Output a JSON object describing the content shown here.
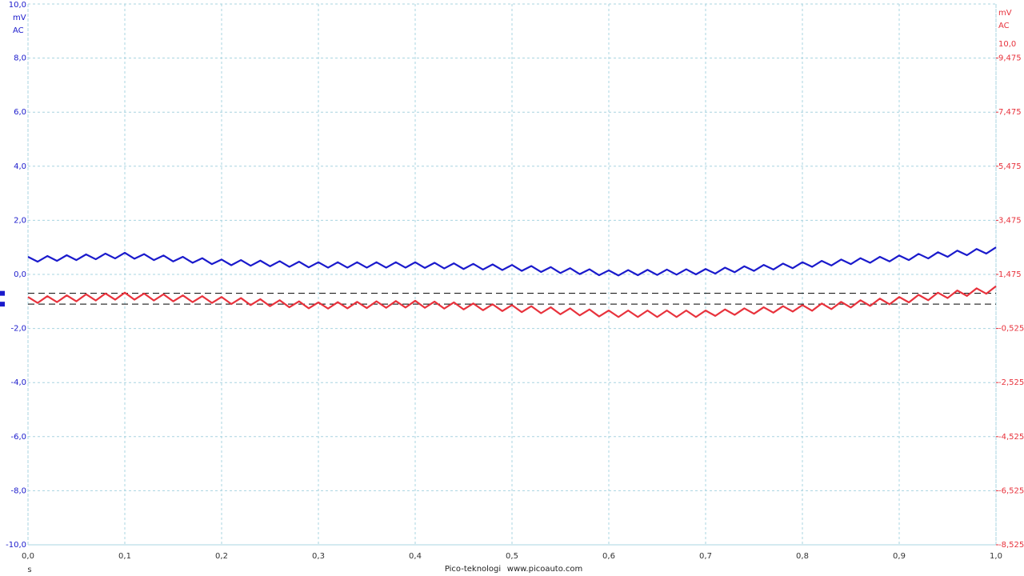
{
  "chart_data": {
    "type": "line",
    "left_header": {
      "top": "10,0",
      "unit": "mV",
      "coupling": "AC"
    },
    "right_header": {
      "unit": "mV",
      "coupling": "AC",
      "range": "10,0"
    },
    "x_unit": "s",
    "footer": [
      "Pico-teknologi",
      "www.picoauto.com"
    ],
    "xlim": [
      0,
      1
    ],
    "xticks": [
      {
        "value": 0,
        "label": "0,0"
      },
      {
        "value": 0.1,
        "label": "0,1"
      },
      {
        "value": 0.2,
        "label": "0,2"
      },
      {
        "value": 0.3,
        "label": "0,3"
      },
      {
        "value": 0.4,
        "label": "0,4"
      },
      {
        "value": 0.5,
        "label": "0,5"
      },
      {
        "value": 0.6,
        "label": "0,6"
      },
      {
        "value": 0.7,
        "label": "0,7"
      },
      {
        "value": 0.8,
        "label": "0,8"
      },
      {
        "value": 0.9,
        "label": "0,9"
      },
      {
        "value": 1,
        "label": "1,0"
      }
    ],
    "ylim": [
      -10,
      10
    ],
    "yticks": [
      {
        "value": 8,
        "label": "8,0"
      },
      {
        "value": 6,
        "label": "6,0"
      },
      {
        "value": 4,
        "label": "4,0"
      },
      {
        "value": 2,
        "label": "2,0"
      },
      {
        "value": 0,
        "label": "0,0"
      },
      {
        "value": -2,
        "label": "-2,0"
      },
      {
        "value": -4,
        "label": "-4,0"
      },
      {
        "value": -6,
        "label": "-6,0"
      },
      {
        "value": -8,
        "label": "-8,0"
      },
      {
        "value": -10,
        "label": "-10,0"
      }
    ],
    "y2lim": [
      -8.525,
      11.475
    ],
    "y2ticks": [
      {
        "value": 9.475,
        "label": "9,475"
      },
      {
        "value": 7.475,
        "label": "7,475"
      },
      {
        "value": 5.475,
        "label": "5,475"
      },
      {
        "value": 3.475,
        "label": "3,475"
      },
      {
        "value": 1.475,
        "label": "1,475"
      },
      {
        "value": -0.525,
        "label": "-0,525"
      },
      {
        "value": -2.525,
        "label": "-2,525"
      },
      {
        "value": -4.525,
        "label": "-4,525"
      },
      {
        "value": -6.525,
        "label": "-6,525"
      },
      {
        "value": -8.525,
        "label": "-8,525"
      }
    ],
    "grid": true,
    "rulers": [
      -0.7,
      -1.1
    ],
    "left_color": "#1a1acc",
    "right_color": "#e8323c",
    "grid_color": "#a8d4e0",
    "x": [
      0,
      0.01,
      0.02,
      0.03,
      0.04,
      0.05,
      0.06,
      0.07,
      0.08,
      0.09,
      0.1,
      0.11,
      0.12,
      0.13,
      0.14,
      0.15,
      0.16,
      0.17,
      0.18,
      0.19,
      0.2,
      0.21,
      0.22,
      0.23,
      0.24,
      0.25,
      0.26,
      0.27,
      0.28,
      0.29,
      0.3,
      0.31,
      0.32,
      0.33,
      0.34,
      0.35,
      0.36,
      0.37,
      0.38,
      0.39,
      0.4,
      0.41,
      0.42,
      0.43,
      0.44,
      0.45,
      0.46,
      0.47,
      0.48,
      0.49,
      0.5,
      0.51,
      0.52,
      0.53,
      0.54,
      0.55,
      0.56,
      0.57,
      0.58,
      0.59,
      0.6,
      0.61,
      0.62,
      0.63,
      0.64,
      0.65,
      0.66,
      0.67,
      0.68,
      0.69,
      0.7,
      0.71,
      0.72,
      0.73,
      0.74,
      0.75,
      0.76,
      0.77,
      0.78,
      0.79,
      0.8,
      0.81,
      0.82,
      0.83,
      0.84,
      0.85,
      0.86,
      0.87,
      0.88,
      0.89,
      0.9,
      0.91,
      0.92,
      0.93,
      0.94,
      0.95,
      0.96,
      0.97,
      0.98,
      0.99,
      1
    ],
    "series": [
      {
        "color": "#1a1acc",
        "axis": "y",
        "values": [
          0.65,
          0.47,
          0.68,
          0.5,
          0.71,
          0.53,
          0.74,
          0.56,
          0.77,
          0.59,
          0.8,
          0.58,
          0.75,
          0.53,
          0.7,
          0.48,
          0.65,
          0.43,
          0.6,
          0.38,
          0.55,
          0.34,
          0.53,
          0.32,
          0.51,
          0.3,
          0.49,
          0.28,
          0.47,
          0.26,
          0.45,
          0.25,
          0.45,
          0.25,
          0.45,
          0.25,
          0.45,
          0.25,
          0.45,
          0.25,
          0.45,
          0.24,
          0.43,
          0.22,
          0.41,
          0.2,
          0.39,
          0.18,
          0.37,
          0.16,
          0.35,
          0.13,
          0.31,
          0.09,
          0.27,
          0.05,
          0.23,
          0.01,
          0.19,
          -0.03,
          0.15,
          -0.04,
          0.16,
          -0.03,
          0.17,
          -0.02,
          0.18,
          -0.01,
          0.19,
          0,
          0.2,
          0.03,
          0.25,
          0.08,
          0.3,
          0.13,
          0.35,
          0.18,
          0.4,
          0.23,
          0.45,
          0.28,
          0.5,
          0.33,
          0.55,
          0.38,
          0.6,
          0.43,
          0.65,
          0.48,
          0.7,
          0.53,
          0.76,
          0.59,
          0.82,
          0.65,
          0.88,
          0.71,
          0.94,
          0.77,
          1.0
        ]
      },
      {
        "color": "#e8323c",
        "axis": "y2",
        "values": [
          0.64,
          0.42,
          0.67,
          0.45,
          0.7,
          0.48,
          0.74,
          0.51,
          0.77,
          0.54,
          0.8,
          0.54,
          0.77,
          0.51,
          0.74,
          0.48,
          0.7,
          0.45,
          0.67,
          0.42,
          0.64,
          0.38,
          0.6,
          0.34,
          0.56,
          0.3,
          0.52,
          0.26,
          0.48,
          0.22,
          0.44,
          0.21,
          0.45,
          0.22,
          0.46,
          0.23,
          0.48,
          0.24,
          0.49,
          0.25,
          0.5,
          0.24,
          0.47,
          0.21,
          0.44,
          0.18,
          0.4,
          0.15,
          0.37,
          0.12,
          0.34,
          0.08,
          0.3,
          0.04,
          0.26,
          0,
          0.22,
          -0.04,
          0.18,
          -0.08,
          0.14,
          -0.1,
          0.14,
          -0.1,
          0.14,
          -0.1,
          0.14,
          -0.1,
          0.14,
          -0.1,
          0.14,
          -0.06,
          0.18,
          -0.02,
          0.22,
          0.02,
          0.26,
          0.06,
          0.3,
          0.1,
          0.34,
          0.13,
          0.4,
          0.19,
          0.46,
          0.25,
          0.52,
          0.31,
          0.58,
          0.37,
          0.64,
          0.44,
          0.72,
          0.52,
          0.8,
          0.6,
          0.88,
          0.68,
          0.96,
          0.76,
          1.04
        ]
      }
    ]
  }
}
